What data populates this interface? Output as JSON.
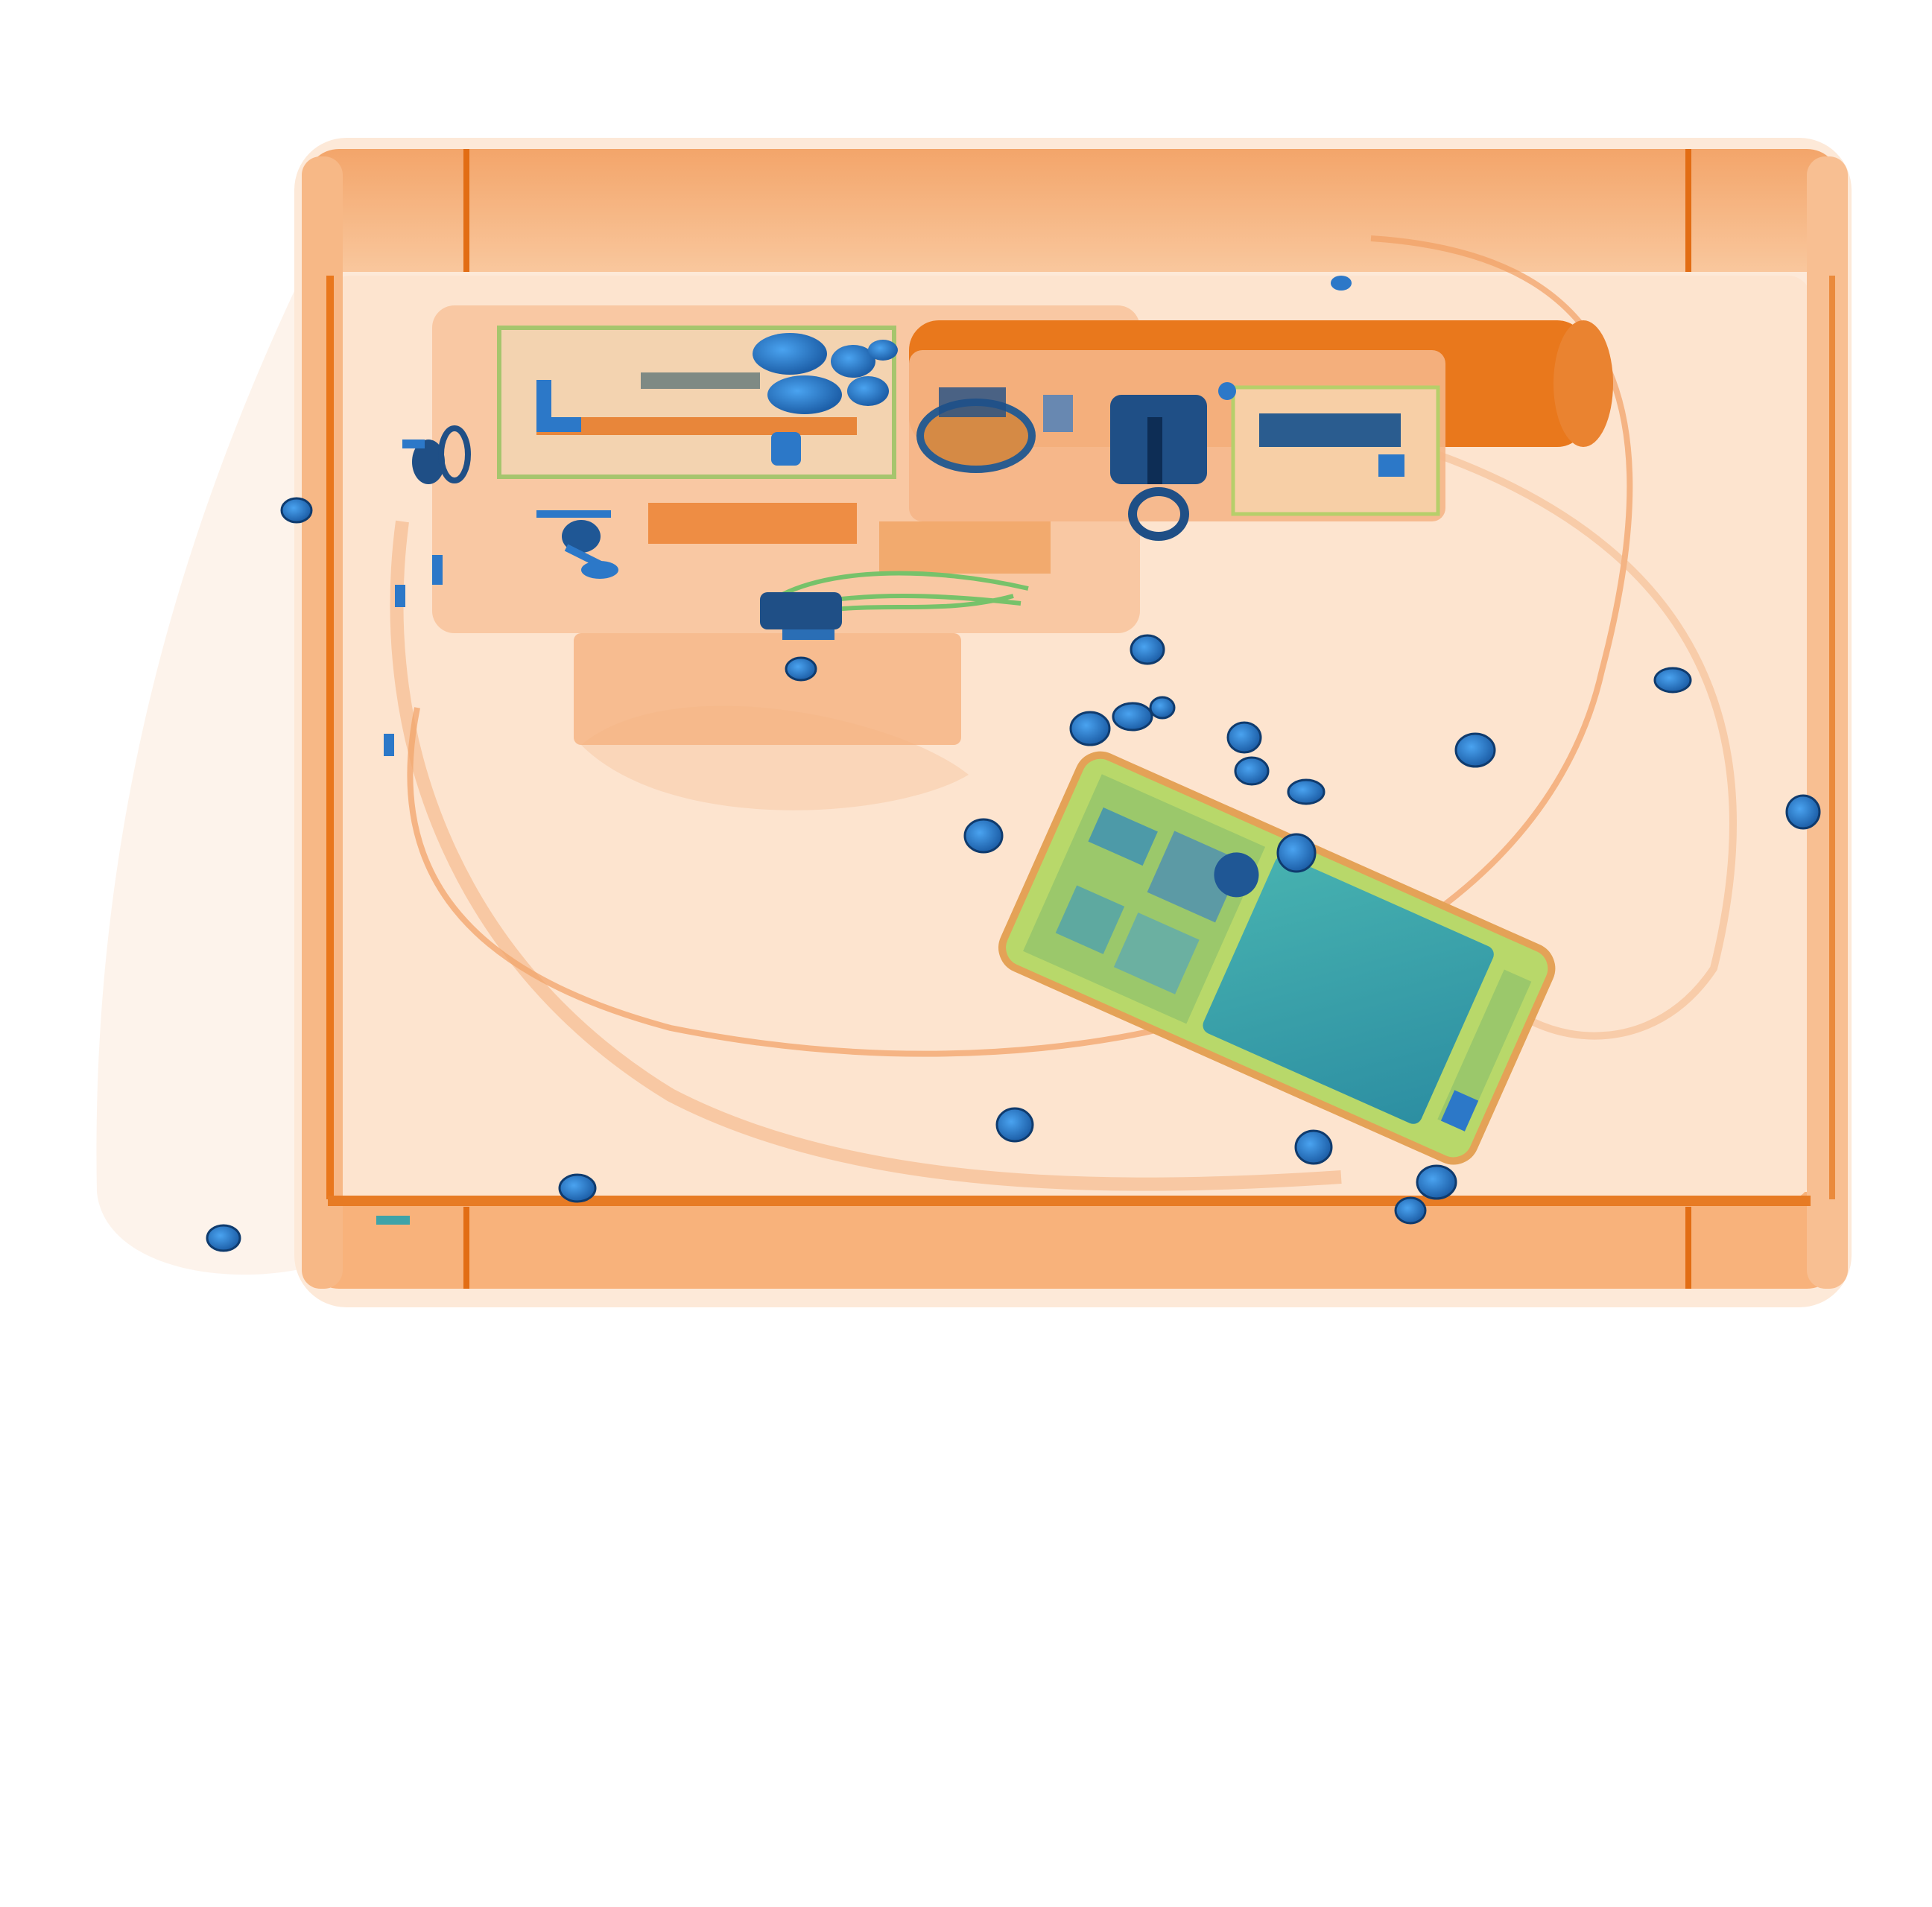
{
  "scan": {
    "description_icon": "xray-baggage-scan",
    "colors": {
      "background": "#ffffff",
      "tray_fill": "#fde6d2",
      "tray_rim": "#f6a463",
      "tray_edge": "#e9771c",
      "organic_dense": "#ea7a1e",
      "organic_light": "#f6c198",
      "inorganic_green": "#8fd96a",
      "metal_blue": "#2c78c8",
      "metal_dark": "#174f8c",
      "screen_teal": "#3fa3a8"
    }
  }
}
